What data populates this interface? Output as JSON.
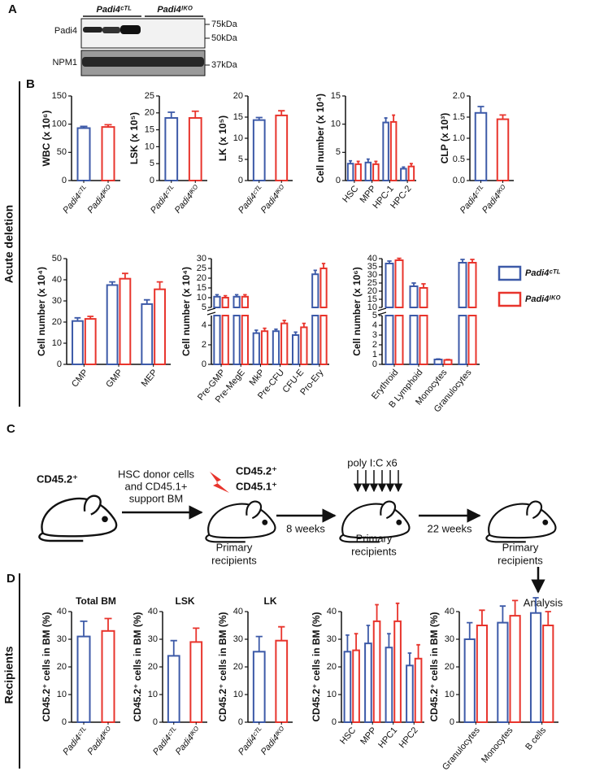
{
  "panel_labels": [
    "A",
    "B",
    "C",
    "D"
  ],
  "section_labels": [
    "Acute deletion",
    "Recipients"
  ],
  "blot": {
    "groups": [
      "Padi4ᶜᵀᴸ",
      "Padi4ᴵᴷᴼ"
    ],
    "rows": [
      "Padi4",
      "NPM1"
    ],
    "markers": [
      "75kDa",
      "50kDa",
      "37kDa"
    ]
  },
  "diagram": {
    "donor": "CD45.2⁺",
    "donor_note": [
      "HSC donor cells",
      "and CD45.1+",
      "support BM"
    ],
    "recipient_markers": [
      "CD45.2⁺",
      "CD45.1⁺"
    ],
    "recipients": [
      [
        "Primary",
        "recipients"
      ],
      [
        "Primary",
        "recipients"
      ],
      [
        "Primary",
        "recipients"
      ]
    ],
    "intervals": [
      "8 weeks",
      "22 weeks"
    ],
    "treatment": "poly I:C x6",
    "endpoint": "Analysis"
  },
  "chart_data": [
    {
      "type": "bar",
      "ylabel": "WBC (x 10⁶)",
      "categories": [
        "Padi4ᶜᵀᴸ",
        "Padi4ᴵᴷᴼ"
      ],
      "values": [
        93,
        95
      ],
      "errors": [
        3,
        4
      ],
      "colors": [
        "#3d5aa8",
        "#e8342c"
      ],
      "ylim": [
        0,
        150
      ],
      "yticks": [
        0,
        50,
        100,
        150
      ]
    },
    {
      "type": "bar",
      "ylabel": "LSK (x 10⁵)",
      "categories": [
        "Padi4ᶜᵀᴸ",
        "Padi4ᴵᴷᴼ"
      ],
      "values": [
        18.5,
        18.5
      ],
      "errors": [
        1.7,
        2
      ],
      "colors": [
        "#3d5aa8",
        "#e8342c"
      ],
      "ylim": [
        0,
        25
      ],
      "yticks": [
        0,
        5,
        10,
        15,
        20,
        25
      ]
    },
    {
      "type": "bar",
      "ylabel": "LK (x 10⁵)",
      "categories": [
        "Padi4ᶜᵀᴸ",
        "Padi4ᴵᴷᴼ"
      ],
      "values": [
        14.3,
        15.4
      ],
      "errors": [
        0.6,
        1.1
      ],
      "colors": [
        "#3d5aa8",
        "#e8342c"
      ],
      "ylim": [
        0,
        20
      ],
      "yticks": [
        0,
        5,
        10,
        15,
        20
      ]
    },
    {
      "type": "bar",
      "ylabel": "Cell number (x 10⁴)",
      "categories": [
        "HSC",
        "MPP",
        "HPC-1",
        "HPC-2"
      ],
      "series": [
        {
          "color": "#3d5aa8",
          "values": [
            3,
            3.2,
            10.3,
            2.1
          ],
          "errors": [
            0.5,
            0.6,
            0.8,
            0.3
          ]
        },
        {
          "color": "#e8342c",
          "values": [
            2.9,
            2.9,
            10.4,
            2.5
          ],
          "errors": [
            0.5,
            0.5,
            1.2,
            0.5
          ]
        }
      ],
      "ylim": [
        0,
        15
      ],
      "yticks": [
        0,
        5,
        10,
        15
      ]
    },
    {
      "type": "bar",
      "ylabel": "CLP (x 10³)",
      "categories": [
        "Padi4ᶜᵀᴸ",
        "Padi4ᴵᴷᴼ"
      ],
      "values": [
        1.6,
        1.45
      ],
      "errors": [
        0.15,
        0.1
      ],
      "colors": [
        "#3d5aa8",
        "#e8342c"
      ],
      "ylim": [
        0,
        2
      ],
      "yticks": [
        {
          "value": 0,
          "label": "0.0"
        },
        {
          "value": 0.5,
          "label": "0.5"
        },
        {
          "value": 1,
          "label": "1.0"
        },
        {
          "value": 1.5,
          "label": "1.5"
        },
        {
          "value": 2,
          "label": "2.0"
        }
      ]
    },
    {
      "type": "bar",
      "ylabel": "Cell number (x 10⁴)",
      "categories": [
        "CMP",
        "GMP",
        "MEP"
      ],
      "series": [
        {
          "color": "#3d5aa8",
          "values": [
            20.5,
            37.5,
            28.5
          ],
          "errors": [
            1.5,
            1.5,
            2
          ]
        },
        {
          "color": "#e8342c",
          "values": [
            21.5,
            40.5,
            35.5
          ],
          "errors": [
            1.2,
            2.5,
            3.5
          ]
        }
      ],
      "ylim": [
        0,
        50
      ],
      "yticks": [
        0,
        10,
        20,
        30,
        40,
        50
      ]
    },
    {
      "type": "bar",
      "ylabel": "Cell number (x 10⁴)",
      "categories": [
        "Pre-GMP",
        "Pre-MegE",
        "MkP",
        "Pre-CFU",
        "CFU-E",
        "Pro-Ery"
      ],
      "series": [
        {
          "color": "#3d5aa8",
          "values": [
            10.5,
            10.5,
            3.2,
            3.4,
            3.0,
            22
          ],
          "errors": [
            1,
            1,
            0.3,
            0.2,
            0.3,
            2
          ]
        },
        {
          "color": "#e8342c",
          "values": [
            10,
            10.5,
            3.4,
            4.2,
            3.8,
            25
          ],
          "errors": [
            1,
            1,
            0.3,
            0.3,
            0.4,
            2.5
          ]
        }
      ],
      "ylim": [
        0,
        30
      ],
      "ybreak": [
        5,
        5
      ],
      "yticks": [
        0,
        2,
        4,
        5,
        10,
        15,
        20,
        25,
        30
      ]
    },
    {
      "type": "bar",
      "ylabel": "Cell number (x 10⁶)",
      "categories": [
        "Erythroid",
        "B Lymphoid",
        "Monocytes",
        "Granulocytes"
      ],
      "series": [
        {
          "name": "Padi4ᶜᵀᴸ",
          "color": "#3d5aa8",
          "values": [
            37,
            23,
            0.5,
            37.5
          ],
          "errors": [
            1.5,
            2,
            0.05,
            2
          ]
        },
        {
          "name": "Padi4ᴵᴷᴼ",
          "color": "#e8342c",
          "values": [
            39,
            22,
            0.45,
            37.5
          ],
          "errors": [
            1.2,
            2.5,
            0.05,
            2
          ]
        }
      ],
      "ylim": [
        0,
        40
      ],
      "ybreak": [
        5,
        10
      ],
      "yticks": [
        0,
        1,
        2,
        3,
        4,
        5,
        10,
        15,
        20,
        25,
        30,
        35,
        40
      ],
      "legend": "right"
    },
    {
      "type": "bar",
      "title": "Total BM",
      "ylabel": "CD45.2⁺ cells in BM (%)",
      "categories": [
        "Padi4ᶜᵀᴸ",
        "Padi4ᴵᴷᴼ"
      ],
      "values": [
        31,
        33
      ],
      "errors": [
        5.5,
        4.5
      ],
      "colors": [
        "#3d5aa8",
        "#e8342c"
      ],
      "ylim": [
        0,
        40
      ],
      "yticks": [
        0,
        10,
        20,
        30,
        40
      ]
    },
    {
      "type": "bar",
      "title": "LSK",
      "ylabel": "CD45.2⁺ cells in BM (%)",
      "categories": [
        "Padi4ᶜᵀᴸ",
        "Padi4ᴵᴷᴼ"
      ],
      "values": [
        24,
        29
      ],
      "errors": [
        5.5,
        5
      ],
      "colors": [
        "#3d5aa8",
        "#e8342c"
      ],
      "ylim": [
        0,
        40
      ],
      "yticks": [
        0,
        10,
        20,
        30,
        40
      ]
    },
    {
      "type": "bar",
      "title": "LK",
      "ylabel": "CD45.2⁺ cells in BM (%)",
      "categories": [
        "Padi4ᶜᵀᴸ",
        "Padi4ᴵᴷᴼ"
      ],
      "values": [
        25.5,
        29.5
      ],
      "errors": [
        5.5,
        5
      ],
      "colors": [
        "#3d5aa8",
        "#e8342c"
      ],
      "ylim": [
        0,
        40
      ],
      "yticks": [
        0,
        10,
        20,
        30,
        40
      ]
    },
    {
      "type": "bar",
      "ylabel": "CD45.2⁺ cells in BM (%)",
      "categories": [
        "HSC",
        "MPP",
        "HPC1",
        "HPC2"
      ],
      "series": [
        {
          "color": "#3d5aa8",
          "values": [
            25.5,
            28.5,
            27,
            20.5
          ],
          "errors": [
            6,
            6.5,
            5,
            4.5
          ]
        },
        {
          "color": "#e8342c",
          "values": [
            26,
            36.5,
            36.5,
            23
          ],
          "errors": [
            6,
            6,
            6.5,
            5
          ]
        }
      ],
      "ylim": [
        0,
        40
      ],
      "yticks": [
        0,
        10,
        20,
        30,
        40
      ]
    },
    {
      "type": "bar",
      "ylabel": "CD45.2⁺ cells in BM (%)",
      "categories": [
        "Granulocytes",
        "Monocytes",
        "B cells"
      ],
      "series": [
        {
          "color": "#3d5aa8",
          "values": [
            30,
            36,
            39.5
          ],
          "errors": [
            6,
            6,
            5.5
          ]
        },
        {
          "color": "#e8342c",
          "values": [
            35,
            38.5,
            35
          ],
          "errors": [
            5.5,
            5.5,
            5
          ]
        }
      ],
      "ylim": [
        0,
        40
      ],
      "yticks": [
        0,
        10,
        20,
        30,
        40
      ]
    }
  ]
}
